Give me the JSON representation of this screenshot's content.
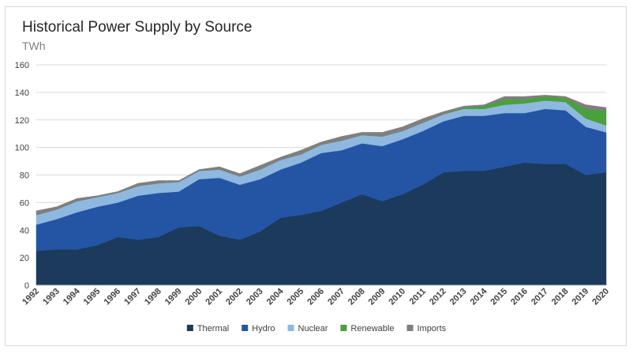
{
  "chart_data": {
    "type": "area",
    "stacked": true,
    "title": "Historical Power Supply by Source",
    "subtitle": "TWh",
    "xlabel": "",
    "ylabel": "",
    "ylim": [
      0,
      160
    ],
    "yticks": [
      0,
      20,
      40,
      60,
      80,
      100,
      120,
      140,
      160
    ],
    "grid": true,
    "legend_position": "bottom",
    "x": [
      "1992",
      "1993",
      "1994",
      "1995",
      "1996",
      "1997",
      "1998",
      "1999",
      "2000",
      "2001",
      "2002",
      "2003",
      "2004",
      "2005",
      "2006",
      "2007",
      "2008",
      "2009",
      "2010",
      "2011",
      "2012",
      "2013",
      "2014",
      "2015",
      "2016",
      "2017",
      "2018",
      "2019",
      "2020"
    ],
    "series": [
      {
        "name": "Thermal",
        "color": "#1b3a5c",
        "values": [
          25,
          26,
          26,
          29,
          35,
          33,
          35,
          42,
          43,
          36,
          33,
          39,
          49,
          51,
          54,
          60,
          66,
          61,
          66,
          73,
          82,
          83,
          83,
          86,
          89,
          88,
          88,
          80,
          82
        ]
      },
      {
        "name": "Hydro",
        "color": "#2455a4",
        "values": [
          19,
          22,
          27,
          28,
          25,
          32,
          32,
          26,
          34,
          42,
          40,
          38,
          35,
          38,
          42,
          38,
          37,
          40,
          40,
          39,
          37,
          40,
          40,
          39,
          36,
          40,
          39,
          35,
          29
        ]
      },
      {
        "name": "Nuclear",
        "color": "#8fb8e0",
        "values": [
          7,
          7,
          8,
          7,
          7,
          7,
          7,
          7,
          6,
          6,
          6,
          7,
          7,
          6,
          6,
          7,
          6,
          7,
          6,
          6,
          5,
          5,
          5,
          6,
          7,
          6,
          6,
          6,
          5
        ]
      },
      {
        "name": "Renewable",
        "color": "#4aa03d",
        "values": [
          0,
          0,
          0,
          0,
          0,
          0,
          0,
          0,
          0,
          0,
          0,
          0,
          0,
          0,
          0,
          0,
          0,
          0,
          0,
          0,
          0,
          1,
          2,
          4,
          3,
          3,
          3,
          7,
          11
        ]
      },
      {
        "name": "Imports",
        "color": "#7f7f7f",
        "values": [
          3,
          2,
          2,
          1,
          1,
          2,
          2,
          1,
          1,
          2,
          2,
          3,
          2,
          3,
          2,
          3,
          2,
          3,
          3,
          3,
          2,
          1,
          1,
          2,
          2,
          1,
          1,
          3,
          2
        ]
      }
    ]
  }
}
